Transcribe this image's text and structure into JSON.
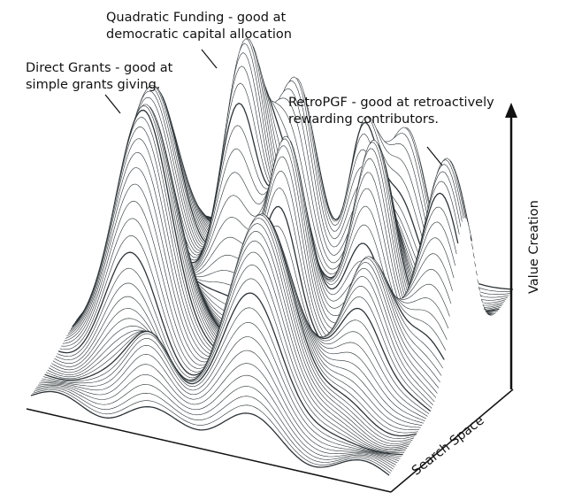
{
  "annotations": {
    "quadratic_funding": [
      "Quadratic Funding - good at",
      "democratic capital allocation"
    ],
    "direct_grants": [
      "Direct Grants - good at",
      "simple grants giving."
    ],
    "retropgf": [
      "RetroPGF - good at retroactively",
      "rewarding contributors."
    ]
  },
  "axes": {
    "vertical_label": "Value Creation",
    "depth_label": "Search Space"
  },
  "colors": {
    "mesh_line": "#2b3236",
    "surface_fill": "#ffffff",
    "axis": "#111111"
  }
}
